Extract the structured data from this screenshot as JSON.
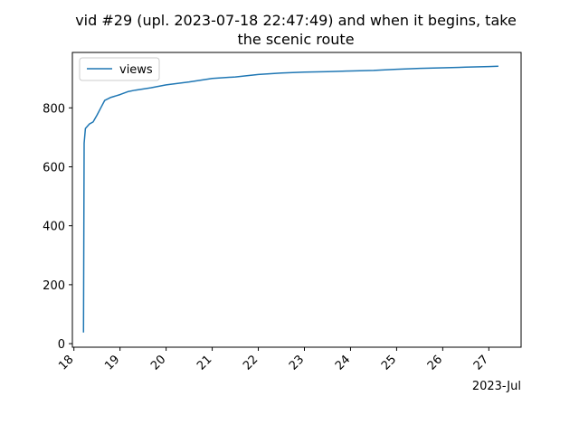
{
  "chart_data": {
    "type": "line",
    "title": [
      "vid #29 (upl. 2023-07-18 22:47:49) and when it begins, take",
      "the scenic route"
    ],
    "xlabel": "",
    "ylabel": "",
    "x_offset_label": "2023-Jul",
    "x_ticks": [
      "18",
      "19",
      "20",
      "21",
      "22",
      "23",
      "24",
      "25",
      "26",
      "27"
    ],
    "y_ticks": [
      0,
      200,
      400,
      600,
      800
    ],
    "xlim": [
      "2023-07-17 23:12",
      "2023-07-27 16:48"
    ],
    "ylim": [
      -12,
      988
    ],
    "grid": false,
    "legend": {
      "placement": "top-left"
    },
    "series": [
      {
        "name": "views",
        "color": "#1f77b4",
        "points": [
          [
            "2023-07-18 05:00",
            38
          ],
          [
            "2023-07-18 05:20",
            680
          ],
          [
            "2023-07-18 06:00",
            730
          ],
          [
            "2023-07-18 08:00",
            745
          ],
          [
            "2023-07-18 10:00",
            752
          ],
          [
            "2023-07-18 12:00",
            775
          ],
          [
            "2023-07-18 14:00",
            800
          ],
          [
            "2023-07-18 16:00",
            825
          ],
          [
            "2023-07-18 19:00",
            835
          ],
          [
            "2023-07-19 00:00",
            845
          ],
          [
            "2023-07-19 04:00",
            855
          ],
          [
            "2023-07-19 08:00",
            860
          ],
          [
            "2023-07-19 16:00",
            868
          ],
          [
            "2023-07-20 00:00",
            878
          ],
          [
            "2023-07-20 12:00",
            888
          ],
          [
            "2023-07-21 00:00",
            900
          ],
          [
            "2023-07-21 12:00",
            905
          ],
          [
            "2023-07-22 00:00",
            913
          ],
          [
            "2023-07-22 12:00",
            918
          ],
          [
            "2023-07-23 00:00",
            921
          ],
          [
            "2023-07-23 12:00",
            923
          ],
          [
            "2023-07-24 00:00",
            925
          ],
          [
            "2023-07-24 12:00",
            927
          ],
          [
            "2023-07-25 00:00",
            931
          ],
          [
            "2023-07-25 12:00",
            934
          ],
          [
            "2023-07-26 00:00",
            936
          ],
          [
            "2023-07-26 12:00",
            938
          ],
          [
            "2023-07-27 00:00",
            940
          ],
          [
            "2023-07-27 05:00",
            941
          ]
        ]
      }
    ]
  }
}
